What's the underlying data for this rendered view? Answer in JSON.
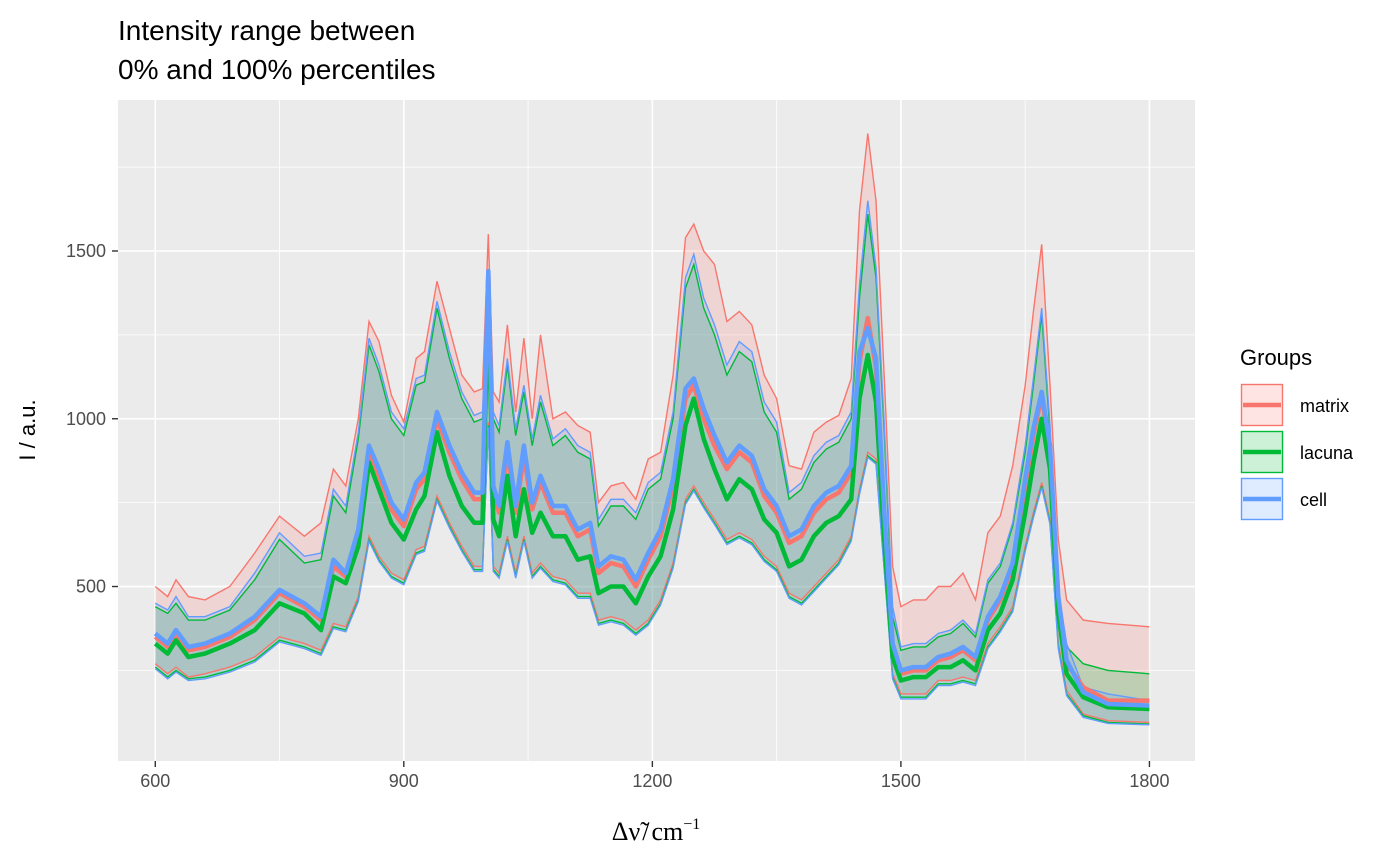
{
  "chart_data": {
    "type": "area",
    "title_lines": [
      "Intensity range between",
      "0% and 100% percentiles"
    ],
    "xlabel": "Δν̃/cm⁻¹",
    "xlabel_parts": {
      "delta": "Δ",
      "nu": "ν̃",
      "slash": "/",
      "unit": "cm",
      "exp": "−1"
    },
    "ylabel": "I / a.u.",
    "xlim": [
      555,
      1855
    ],
    "ylim": [
      -20,
      1950
    ],
    "x_ticks": [
      600,
      900,
      1200,
      1500,
      1800
    ],
    "y_ticks": [
      500,
      1000,
      1500
    ],
    "x_tick_labels": [
      "600",
      "900",
      "1200",
      "1500",
      "1800"
    ],
    "y_tick_labels": [
      "500",
      "1000",
      "1500"
    ],
    "grid": true,
    "legend": {
      "title": "Groups",
      "position": "right"
    },
    "x": [
      600,
      615,
      625,
      640,
      660,
      690,
      720,
      750,
      780,
      800,
      815,
      830,
      845,
      858,
      870,
      885,
      900,
      915,
      925,
      940,
      955,
      970,
      985,
      995,
      1002,
      1008,
      1015,
      1025,
      1035,
      1045,
      1055,
      1065,
      1080,
      1095,
      1110,
      1125,
      1135,
      1150,
      1165,
      1180,
      1195,
      1210,
      1225,
      1240,
      1250,
      1262,
      1275,
      1290,
      1305,
      1320,
      1335,
      1350,
      1365,
      1380,
      1395,
      1410,
      1425,
      1440,
      1450,
      1460,
      1470,
      1480,
      1490,
      1500,
      1515,
      1530,
      1545,
      1560,
      1575,
      1590,
      1605,
      1620,
      1635,
      1650,
      1660,
      1670,
      1680,
      1690,
      1700,
      1720,
      1750,
      1800
    ],
    "series": [
      {
        "name": "matrix",
        "color": "#F8766D",
        "fill": "#F8766D",
        "max": [
          500,
          470,
          520,
          470,
          460,
          500,
          600,
          710,
          650,
          690,
          850,
          800,
          1000,
          1290,
          1230,
          1070,
          990,
          1180,
          1200,
          1410,
          1270,
          1130,
          1080,
          1090,
          1550,
          1080,
          1050,
          1280,
          1020,
          1240,
          1000,
          1250,
          1000,
          1020,
          980,
          960,
          750,
          800,
          810,
          760,
          880,
          900,
          1130,
          1540,
          1580,
          1500,
          1460,
          1290,
          1320,
          1280,
          1130,
          1060,
          860,
          850,
          960,
          990,
          1010,
          1120,
          1620,
          1850,
          1650,
          1120,
          560,
          440,
          460,
          460,
          500,
          500,
          540,
          460,
          660,
          710,
          860,
          1100,
          1320,
          1520,
          1100,
          640,
          460,
          400,
          390,
          380
        ],
        "median": [
          350,
          320,
          360,
          310,
          320,
          350,
          400,
          480,
          440,
          400,
          560,
          530,
          650,
          900,
          830,
          730,
          680,
          790,
          820,
          1000,
          900,
          820,
          760,
          760,
          1430,
          780,
          720,
          900,
          720,
          890,
          730,
          810,
          720,
          720,
          650,
          670,
          540,
          570,
          560,
          500,
          580,
          650,
          800,
          1060,
          1100,
          1000,
          920,
          850,
          900,
          870,
          770,
          720,
          630,
          650,
          720,
          760,
          780,
          840,
          1170,
          1300,
          1150,
          700,
          320,
          240,
          250,
          250,
          280,
          290,
          310,
          280,
          400,
          460,
          560,
          800,
          950,
          1070,
          900,
          450,
          270,
          200,
          160,
          160
        ],
        "min": [
          270,
          240,
          260,
          230,
          240,
          260,
          290,
          350,
          330,
          310,
          390,
          380,
          470,
          650,
          590,
          540,
          520,
          610,
          620,
          770,
          690,
          620,
          560,
          560,
          990,
          560,
          540,
          650,
          540,
          650,
          540,
          570,
          530,
          520,
          480,
          480,
          400,
          410,
          400,
          370,
          400,
          460,
          570,
          760,
          800,
          750,
          700,
          640,
          660,
          640,
          590,
          560,
          480,
          460,
          500,
          540,
          580,
          650,
          790,
          900,
          880,
          560,
          240,
          180,
          180,
          180,
          220,
          220,
          230,
          220,
          330,
          380,
          440,
          620,
          720,
          810,
          700,
          330,
          190,
          120,
          100,
          95
        ]
      },
      {
        "name": "lacuna",
        "color": "#00BA38",
        "fill": "#00BA38",
        "max": [
          440,
          420,
          450,
          400,
          400,
          430,
          520,
          640,
          570,
          580,
          770,
          720,
          940,
          1220,
          1140,
          1000,
          950,
          1100,
          1110,
          1330,
          1180,
          1060,
          990,
          1000,
          1280,
          1000,
          960,
          1160,
          950,
          1080,
          920,
          1050,
          920,
          950,
          900,
          880,
          680,
          740,
          740,
          700,
          790,
          820,
          1000,
          1390,
          1460,
          1330,
          1250,
          1130,
          1200,
          1170,
          1020,
          960,
          760,
          790,
          870,
          910,
          930,
          1000,
          1360,
          1610,
          1420,
          960,
          410,
          310,
          320,
          320,
          350,
          360,
          390,
          350,
          510,
          560,
          680,
          900,
          1100,
          1310,
          960,
          480,
          320,
          270,
          250,
          240
        ],
        "median": [
          330,
          300,
          340,
          290,
          300,
          330,
          370,
          450,
          420,
          370,
          530,
          510,
          620,
          870,
          790,
          690,
          640,
          730,
          770,
          960,
          830,
          740,
          690,
          690,
          1380,
          700,
          650,
          830,
          650,
          790,
          660,
          720,
          650,
          650,
          580,
          590,
          480,
          500,
          500,
          450,
          530,
          590,
          730,
          980,
          1060,
          940,
          850,
          760,
          820,
          790,
          700,
          660,
          560,
          580,
          650,
          690,
          710,
          760,
          1060,
          1190,
          1050,
          640,
          290,
          220,
          230,
          230,
          260,
          260,
          280,
          250,
          370,
          420,
          520,
          720,
          870,
          1000,
          850,
          420,
          240,
          170,
          140,
          135
        ],
        "min": [
          260,
          230,
          250,
          225,
          230,
          250,
          280,
          340,
          320,
          300,
          380,
          370,
          460,
          640,
          580,
          530,
          510,
          600,
          610,
          760,
          680,
          610,
          550,
          550,
          980,
          550,
          530,
          640,
          530,
          640,
          530,
          560,
          520,
          510,
          470,
          470,
          390,
          400,
          390,
          360,
          390,
          450,
          560,
          750,
          790,
          740,
          690,
          630,
          650,
          630,
          580,
          550,
          470,
          450,
          490,
          530,
          570,
          640,
          780,
          890,
          870,
          550,
          230,
          170,
          170,
          170,
          210,
          210,
          220,
          210,
          320,
          370,
          430,
          610,
          710,
          800,
          690,
          320,
          180,
          115,
          95,
          90
        ]
      },
      {
        "name": "cell",
        "color": "#619CFF",
        "fill": "#619CFF",
        "max": [
          450,
          430,
          470,
          410,
          410,
          440,
          540,
          660,
          590,
          600,
          790,
          740,
          960,
          1240,
          1160,
          1020,
          970,
          1120,
          1130,
          1350,
          1200,
          1080,
          1010,
          1020,
          1430,
          1020,
          980,
          1180,
          970,
          1100,
          940,
          1070,
          940,
          970,
          920,
          900,
          700,
          760,
          760,
          720,
          810,
          840,
          1020,
          1420,
          1490,
          1360,
          1280,
          1160,
          1230,
          1200,
          1050,
          990,
          780,
          810,
          890,
          930,
          950,
          1020,
          1400,
          1650,
          1450,
          980,
          440,
          320,
          330,
          330,
          360,
          370,
          400,
          360,
          520,
          570,
          690,
          920,
          1120,
          1330,
          980,
          490,
          330,
          200,
          180,
          160
        ],
        "median": [
          360,
          330,
          370,
          320,
          330,
          360,
          410,
          490,
          450,
          410,
          580,
          540,
          670,
          920,
          850,
          750,
          700,
          810,
          840,
          1020,
          920,
          840,
          780,
          780,
          1440,
          800,
          740,
          930,
          740,
          920,
          750,
          830,
          740,
          740,
          670,
          690,
          560,
          590,
          580,
          520,
          600,
          670,
          820,
          1090,
          1120,
          1030,
          950,
          870,
          920,
          890,
          790,
          740,
          650,
          670,
          740,
          780,
          800,
          860,
          1200,
          1270,
          1180,
          720,
          330,
          250,
          260,
          260,
          290,
          300,
          320,
          290,
          410,
          470,
          570,
          820,
          970,
          1080,
          920,
          470,
          280,
          185,
          150,
          145
        ],
        "min": [
          255,
          225,
          245,
          220,
          225,
          245,
          275,
          335,
          315,
          295,
          375,
          365,
          455,
          635,
          575,
          525,
          505,
          595,
          605,
          755,
          675,
          605,
          545,
          545,
          975,
          545,
          525,
          635,
          525,
          635,
          525,
          555,
          515,
          505,
          465,
          465,
          385,
          395,
          385,
          355,
          385,
          445,
          555,
          745,
          785,
          735,
          685,
          625,
          645,
          625,
          575,
          545,
          465,
          445,
          485,
          525,
          565,
          635,
          775,
          885,
          865,
          545,
          225,
          165,
          165,
          165,
          205,
          205,
          215,
          205,
          315,
          365,
          425,
          605,
          705,
          795,
          685,
          315,
          175,
          110,
          92,
          88
        ]
      }
    ]
  }
}
